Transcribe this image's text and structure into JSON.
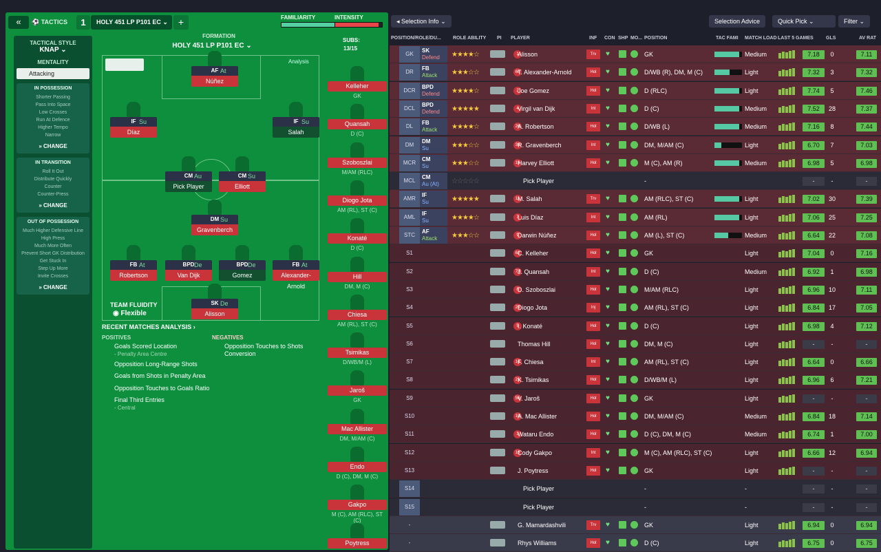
{
  "top": {
    "tactics_label": "TACTICS",
    "tactic_number": "1",
    "tactic_name": "HOLY 451 LP P101 EC",
    "familiarity_label": "FAMILIARITY",
    "intensity_label": "INTENSITY",
    "familiarity_pct": 88,
    "intensity_pct": 92
  },
  "left": {
    "tactical_style_label": "TACTICAL STYLE",
    "tactical_style": "KNAP",
    "mentality_label": "MENTALITY",
    "mentality": "Attacking",
    "in_possession": {
      "title": "IN POSSESSION",
      "items": [
        "Shorter Passing",
        "Pass Into Space",
        "Low Crosses",
        "Run At Defence",
        "Higher Tempo",
        "Narrow"
      ]
    },
    "in_transition": {
      "title": "IN TRANSITION",
      "items": [
        "Roll It Out",
        "Distribute Quickly",
        "Counter",
        "Counter-Press"
      ]
    },
    "out_of_possession": {
      "title": "OUT OF POSSESSION",
      "items": [
        "Much Higher Defensive Line",
        "High Press",
        "Much More Often",
        "Prevent Short GK Distribution",
        "Get Stuck In",
        "Step Up More",
        "Invite Crosses"
      ]
    },
    "change_label": "CHANGE"
  },
  "formation": {
    "label": "FORMATION",
    "name": "HOLY 451 LP P101 EC",
    "analysis": "Analysis",
    "subs_label": "SUBS:",
    "subs_count": "13/15"
  },
  "pitch_players": [
    {
      "role": "AF",
      "duty": "At",
      "name": "Núñez"
    },
    {
      "role": "IF",
      "duty": "Su",
      "name": "Díaz"
    },
    {
      "role": "IF",
      "duty": "Su",
      "name": "Salah"
    },
    {
      "role": "CM",
      "duty": "Au",
      "name": "Pick Player"
    },
    {
      "role": "CM",
      "duty": "Su",
      "name": "Elliott"
    },
    {
      "role": "DM",
      "duty": "Su",
      "name": "Gravenberch"
    },
    {
      "role": "FB",
      "duty": "At",
      "name": "Robertson"
    },
    {
      "role": "BPD",
      "duty": "De",
      "name": "Van Dijk"
    },
    {
      "role": "BPD",
      "duty": "De",
      "name": "Gomez"
    },
    {
      "role": "FB",
      "duty": "At",
      "name": "Alexander-Arnold"
    },
    {
      "role": "SK",
      "duty": "De",
      "name": "Alisson"
    }
  ],
  "subs": [
    {
      "name": "Kelleher",
      "pos": "GK"
    },
    {
      "name": "Quansah",
      "pos": "D (C)"
    },
    {
      "name": "Szoboszlai",
      "pos": "M/AM (RLC)"
    },
    {
      "name": "Diogo Jota",
      "pos": "AM (RL), ST (C)"
    },
    {
      "name": "Konaté",
      "pos": "D (C)"
    },
    {
      "name": "Hill",
      "pos": "DM, M (C)"
    },
    {
      "name": "Chiesa",
      "pos": "AM (RL), ST (C)"
    },
    {
      "name": "Tsimikas",
      "pos": "D/WB/M (L)"
    },
    {
      "name": "Jaroš",
      "pos": "GK"
    },
    {
      "name": "Mac Allister",
      "pos": "DM, M/AM (C)"
    },
    {
      "name": "Endo",
      "pos": "D (C), DM, M (C)"
    },
    {
      "name": "Gakpo",
      "pos": "M (C), AM (RLC), ST (C)"
    },
    {
      "name": "Poytress",
      "pos": "GK"
    }
  ],
  "team_fluidity": {
    "label": "TEAM FLUIDITY",
    "value": "Flexible"
  },
  "recent": {
    "title": "RECENT MATCHES ANALYSIS",
    "positives_label": "POSITIVES",
    "negatives_label": "NEGATIVES",
    "positives": [
      {
        "t": "Goals Scored Location",
        "s": "- Penalty Area Centre"
      },
      {
        "t": "Opposition Long-Range Shots",
        "s": ""
      },
      {
        "t": "Goals from Shots in Penalty Area",
        "s": ""
      },
      {
        "t": "Opposition Touches to Goals Ratio",
        "s": ""
      },
      {
        "t": "Final Third Entries",
        "s": "- Central"
      }
    ],
    "negatives": [
      {
        "t": "Opposition Touches to Shots Conversion",
        "s": ""
      }
    ]
  },
  "right": {
    "selection_info": "Selection Info",
    "selection_advice": "Selection Advice",
    "quick_pick": "Quick Pick",
    "filter": "Filter",
    "headers": {
      "pos": "POSITION/ROLE/DU...",
      "role_ability": "ROLE ABILITY",
      "pi": "PI",
      "player": "PLAYER",
      "inf": "INF",
      "con": "CON",
      "shp": "SHP",
      "mo": "MO...",
      "position": "POSITION",
      "tac": "TAC FAMI",
      "load": "MATCH LOAD",
      "last5": "LAST 5 GAMES",
      "gls": "GLS",
      "avrat": "AV RAT"
    },
    "rows": [
      {
        "slot": "GK",
        "role": "SK",
        "duty": "Defend",
        "stars": 4,
        "player": "Alisson",
        "num": "1",
        "inf": "Trv",
        "position": "GK",
        "tac": 90,
        "load": "Medium",
        "rating": "7.18",
        "gls": "0",
        "avrat": "7.11",
        "type": "first"
      },
      {
        "slot": "DR",
        "role": "FB",
        "duty": "Attack",
        "stars": 3,
        "player": "T. Alexander-Arnold",
        "num": "66",
        "inf": "Hol",
        "position": "D/WB (R), DM, M (C)",
        "tac": 55,
        "load": "Light",
        "rating": "7.32",
        "gls": "3",
        "avrat": "7.32",
        "type": "first"
      },
      {
        "slot": "DCR",
        "role": "BPD",
        "duty": "Defend",
        "stars": 3.5,
        "player": "Joe Gomez",
        "num": "2",
        "inf": "Hol",
        "position": "D (RLC)",
        "tac": 90,
        "load": "Light",
        "rating": "7.74",
        "gls": "5",
        "avrat": "7.46",
        "type": "first"
      },
      {
        "slot": "DCL",
        "role": "BPD",
        "duty": "Defend",
        "stars": 4.5,
        "player": "Virgil van Dijk",
        "num": "4",
        "inf": "Int",
        "position": "D (C)",
        "tac": 90,
        "load": "Medium",
        "rating": "7.52",
        "gls": "28",
        "avrat": "7.37",
        "type": "first"
      },
      {
        "slot": "DL",
        "role": "FB",
        "duty": "Attack",
        "stars": 4,
        "player": "A. Robertson",
        "num": "26",
        "inf": "Hol",
        "position": "D/WB (L)",
        "tac": 90,
        "load": "Medium",
        "rating": "7.16",
        "gls": "8",
        "avrat": "7.44",
        "type": "first"
      },
      {
        "slot": "DM",
        "role": "DM",
        "duty": "Su",
        "stars": 2.5,
        "player": "R. Gravenberch",
        "num": "38",
        "inf": "Int",
        "position": "DM, M/AM (C)",
        "tac": 25,
        "load": "Light",
        "rating": "6.70",
        "gls": "7",
        "avrat": "7.03",
        "type": "first"
      },
      {
        "slot": "MCR",
        "role": "CM",
        "duty": "Su",
        "stars": 2.5,
        "player": "Harvey Elliott",
        "num": "19",
        "inf": "Hol",
        "position": "M (C), AM (R)",
        "tac": 90,
        "load": "Medium",
        "rating": "6.98",
        "gls": "5",
        "avrat": "6.98",
        "type": "first"
      },
      {
        "slot": "MCL",
        "role": "CM",
        "duty": "Au (At)",
        "stars": 0,
        "player": "Pick Player",
        "num": "",
        "inf": "",
        "position": "-",
        "tac": 0,
        "load": "",
        "rating": "-",
        "gls": "-",
        "avrat": "-",
        "type": "empty"
      },
      {
        "slot": "AMR",
        "role": "IF",
        "duty": "Su",
        "stars": 4.5,
        "player": "M. Salah",
        "num": "11",
        "inf": "Trv",
        "position": "AM (RLC), ST (C)",
        "tac": 90,
        "load": "Light",
        "rating": "7.02",
        "gls": "30",
        "avrat": "7.39",
        "type": "first"
      },
      {
        "slot": "AML",
        "role": "IF",
        "duty": "Su",
        "stars": 4,
        "player": "Luis Díaz",
        "num": "7",
        "inf": "Int",
        "position": "AM (RL)",
        "tac": 90,
        "load": "Light",
        "rating": "7.06",
        "gls": "25",
        "avrat": "7.25",
        "type": "first"
      },
      {
        "slot": "STC",
        "role": "AF",
        "duty": "Attack",
        "stars": 3,
        "player": "Darwin Núñez",
        "num": "9",
        "inf": "Hol",
        "position": "AM (L), ST (C)",
        "tac": 50,
        "load": "Medium",
        "rating": "6.64",
        "gls": "22",
        "avrat": "7.08",
        "type": "first"
      },
      {
        "slot": "S1",
        "role": "",
        "duty": "",
        "stars": -1,
        "player": "C. Kelleher",
        "num": "62",
        "inf": "Hol",
        "position": "GK",
        "tac": -1,
        "load": "Light",
        "rating": "7.04",
        "gls": "0",
        "avrat": "7.16",
        "type": "sub"
      },
      {
        "slot": "S2",
        "role": "",
        "duty": "",
        "stars": -1,
        "player": "J. Quansah",
        "num": "78",
        "inf": "Int",
        "position": "D (C)",
        "tac": -1,
        "load": "Medium",
        "rating": "6.92",
        "gls": "1",
        "avrat": "6.98",
        "type": "sub"
      },
      {
        "slot": "S3",
        "role": "",
        "duty": "",
        "stars": -1,
        "player": "D. Szoboszlai",
        "num": "8",
        "inf": "Hol",
        "position": "M/AM (RLC)",
        "tac": -1,
        "load": "Light",
        "rating": "6.96",
        "gls": "10",
        "avrat": "7.11",
        "type": "sub"
      },
      {
        "slot": "S4",
        "role": "",
        "duty": "",
        "stars": -1,
        "player": "Diogo Jota",
        "num": "20",
        "inf": "Inj",
        "position": "AM (RL), ST (C)",
        "tac": -1,
        "load": "Light",
        "rating": "6.84",
        "gls": "17",
        "avrat": "7.05",
        "type": "sub"
      },
      {
        "slot": "S5",
        "role": "",
        "duty": "",
        "stars": -1,
        "player": "I. Konaté",
        "num": "5",
        "inf": "Hol",
        "position": "D (C)",
        "tac": -1,
        "load": "Light",
        "rating": "6.98",
        "gls": "4",
        "avrat": "7.12",
        "type": "sub"
      },
      {
        "slot": "S6",
        "role": "",
        "duty": "",
        "stars": -1,
        "player": "Thomas Hill",
        "num": "",
        "inf": "Hol",
        "position": "DM, M (C)",
        "tac": -1,
        "load": "Light",
        "rating": "-",
        "gls": "-",
        "avrat": "-",
        "type": "sub"
      },
      {
        "slot": "S7",
        "role": "",
        "duty": "",
        "stars": -1,
        "player": "F. Chiesa",
        "num": "14",
        "inf": "Int",
        "position": "AM (RL), ST (C)",
        "tac": -1,
        "load": "Light",
        "rating": "6.64",
        "gls": "0",
        "avrat": "6.66",
        "type": "sub"
      },
      {
        "slot": "S8",
        "role": "",
        "duty": "",
        "stars": -1,
        "player": "K. Tsimikas",
        "num": "21",
        "inf": "Hol",
        "position": "D/WB/M (L)",
        "tac": -1,
        "load": "Light",
        "rating": "6.96",
        "gls": "6",
        "avrat": "7.21",
        "type": "sub"
      },
      {
        "slot": "S9",
        "role": "",
        "duty": "",
        "stars": -1,
        "player": "V. Jaroš",
        "num": "56",
        "inf": "Hol",
        "position": "GK",
        "tac": -1,
        "load": "Light",
        "rating": "-",
        "gls": "-",
        "avrat": "-",
        "type": "sub"
      },
      {
        "slot": "S10",
        "role": "",
        "duty": "",
        "stars": -1,
        "player": "A. Mac Allister",
        "num": "10",
        "inf": "Hol",
        "position": "DM, M/AM (C)",
        "tac": -1,
        "load": "Medium",
        "rating": "6.84",
        "gls": "18",
        "avrat": "7.14",
        "type": "sub"
      },
      {
        "slot": "S11",
        "role": "",
        "duty": "",
        "stars": -1,
        "player": "Wataru Endo",
        "num": "3",
        "inf": "Hol",
        "position": "D (C), DM, M (C)",
        "tac": -1,
        "load": "Medium",
        "rating": "6.74",
        "gls": "1",
        "avrat": "7.00",
        "type": "sub"
      },
      {
        "slot": "S12",
        "role": "",
        "duty": "",
        "stars": -1,
        "player": "Cody Gakpo",
        "num": "18",
        "inf": "Int",
        "position": "M (C), AM (RLC), ST (C)",
        "tac": -1,
        "load": "Light",
        "rating": "6.66",
        "gls": "12",
        "avrat": "6.94",
        "type": "sub"
      },
      {
        "slot": "S13",
        "role": "",
        "duty": "",
        "stars": -1,
        "player": "J. Poytress",
        "num": "",
        "inf": "Hol",
        "position": "GK",
        "tac": -1,
        "load": "Light",
        "rating": "-",
        "gls": "-",
        "avrat": "-",
        "type": "sub"
      },
      {
        "slot": "S14",
        "role": "",
        "duty": "",
        "stars": -1,
        "player": "Pick Player",
        "num": "",
        "inf": "",
        "position": "-",
        "tac": -1,
        "load": "-",
        "rating": "-",
        "gls": "-",
        "avrat": "-",
        "type": "empty"
      },
      {
        "slot": "S15",
        "role": "",
        "duty": "",
        "stars": -1,
        "player": "Pick Player",
        "num": "",
        "inf": "",
        "position": "-",
        "tac": -1,
        "load": "-",
        "rating": "-",
        "gls": "-",
        "avrat": "-",
        "type": "empty"
      },
      {
        "slot": "-",
        "role": "",
        "duty": "",
        "stars": -1,
        "player": "G. Mamardashvili",
        "num": "",
        "inf": "Trv",
        "position": "GK",
        "tac": -1,
        "load": "Light",
        "rating": "6.94",
        "gls": "0",
        "avrat": "6.94",
        "type": "res"
      },
      {
        "slot": "-",
        "role": "",
        "duty": "",
        "stars": -1,
        "player": "Rhys Williams",
        "num": "",
        "inf": "Hol",
        "position": "D (C)",
        "tac": -1,
        "load": "Light",
        "rating": "6.75",
        "gls": "0",
        "avrat": "6.75",
        "type": "res"
      }
    ]
  }
}
